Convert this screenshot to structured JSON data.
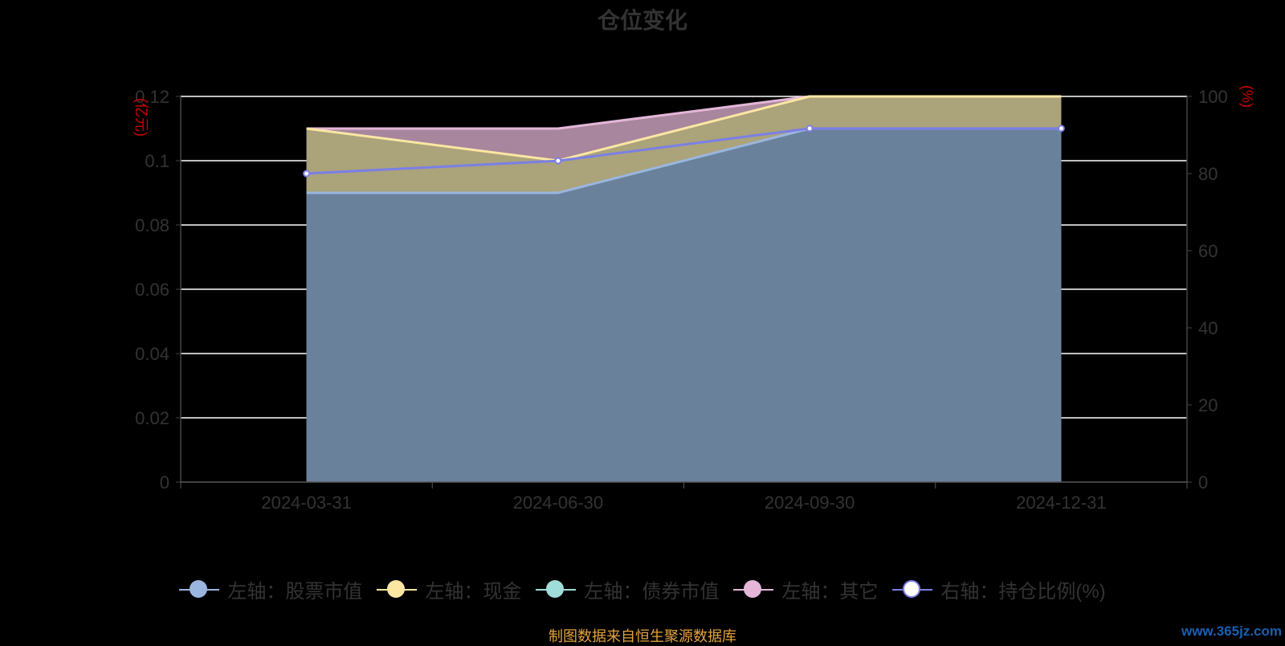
{
  "title": "仓位变化",
  "footer": "制图数据来自恒生聚源数据库",
  "watermark": "www.365jz.com",
  "colors": {
    "stock": "#9ab6de",
    "cash": "#fbe6a3",
    "bond": "#a0dcd9",
    "other": "#e4b6d8",
    "ratio": "#7b7fe6",
    "axisUnit": "#cc0000",
    "footer": "#e3a33c",
    "grid": "#ffffff",
    "axisText": "#333333"
  },
  "chart_data": {
    "type": "area",
    "categories": [
      "2024-03-31",
      "2024-06-30",
      "2024-09-30",
      "2024-12-31"
    ],
    "left_axis": {
      "label": "(亿元)",
      "ylim": [
        0,
        0.12
      ],
      "ticks": [
        "0",
        "0.02",
        "0.04",
        "0.06",
        "0.08",
        "0.1",
        "0.12"
      ]
    },
    "right_axis": {
      "label": "(%)",
      "ylim": [
        0,
        100
      ],
      "ticks": [
        "0",
        "20",
        "40",
        "60",
        "80",
        "100"
      ]
    },
    "series": [
      {
        "name": "左轴：股票市值",
        "key": "stock",
        "axis": "left",
        "values": [
          0.09,
          0.09,
          0.11,
          0.11
        ]
      },
      {
        "name": "左轴：现金",
        "key": "cash",
        "axis": "left",
        "values": [
          0.11,
          0.1,
          0.12,
          0.12
        ]
      },
      {
        "name": "左轴：债券市值",
        "key": "bond",
        "axis": "left",
        "values": [
          0,
          0,
          0,
          0
        ]
      },
      {
        "name": "左轴：其它",
        "key": "other",
        "axis": "left",
        "values": [
          0.11,
          0.11,
          0.12,
          0.12
        ]
      },
      {
        "name": "右轴：持仓比例(%)",
        "key": "ratio",
        "axis": "right",
        "values": [
          80.0,
          83.3,
          91.7,
          91.7
        ]
      }
    ],
    "grid": true,
    "legend_position": "bottom"
  }
}
